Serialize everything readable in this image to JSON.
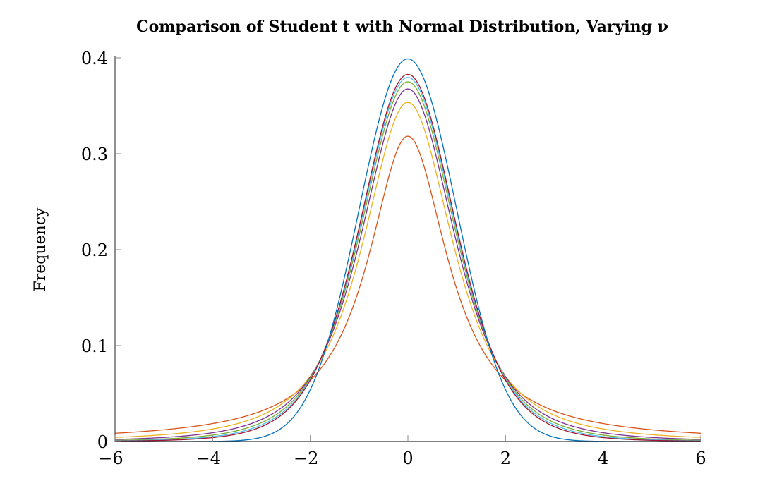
{
  "chart_data": {
    "type": "line",
    "title": "Comparison of Student t with Normal Distribution, Varying ν",
    "xlabel": "",
    "ylabel": "Frequency",
    "xlim": [
      -6,
      6
    ],
    "ylim": [
      0,
      0.4
    ],
    "xticks": [
      "−6",
      "−4",
      "−2",
      "0",
      "2",
      "4",
      "6"
    ],
    "xtick_values": [
      -6,
      -4,
      -2,
      0,
      2,
      4,
      6
    ],
    "yticks": [
      "0",
      "0.1",
      "0.2",
      "0.3",
      "0.4"
    ],
    "ytick_values": [
      0,
      0.1,
      0.2,
      0.3,
      0.4
    ],
    "grid": false,
    "legend": "none",
    "series": [
      {
        "distribution": "normal",
        "mean": 0,
        "sd": 1,
        "peak": 0.399,
        "color": "#0072BD"
      },
      {
        "distribution": "student-t",
        "nu": 1,
        "peak": 0.318,
        "color": "#D95319"
      },
      {
        "distribution": "student-t",
        "nu": 2,
        "peak": 0.354,
        "color": "#EDB120"
      },
      {
        "distribution": "student-t",
        "nu": 3,
        "peak": 0.368,
        "color": "#7E2F8E"
      },
      {
        "distribution": "student-t",
        "nu": 4,
        "peak": 0.375,
        "color": "#77AC30"
      },
      {
        "distribution": "student-t",
        "nu": 5,
        "peak": 0.38,
        "color": "#4DBEEE"
      },
      {
        "distribution": "student-t",
        "nu": 6,
        "peak": 0.383,
        "color": "#A2142F"
      }
    ]
  }
}
